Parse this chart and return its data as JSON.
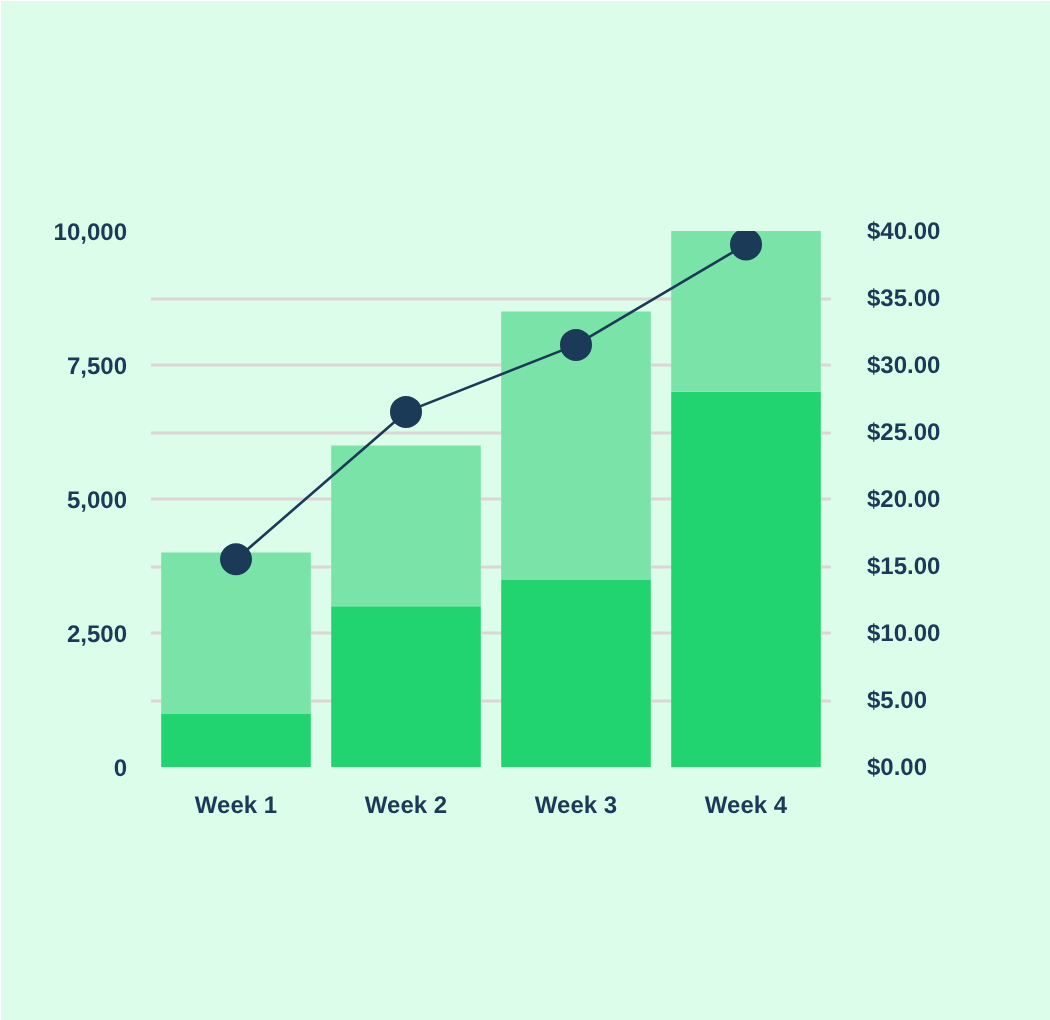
{
  "chart_data": {
    "type": "bar",
    "categories": [
      "Week 1",
      "Week 2",
      "Week 3",
      "Week 4"
    ],
    "stacked": true,
    "series": [
      {
        "color": "#22d46f",
        "values": [
          1000,
          3000,
          3500,
          7000
        ]
      },
      {
        "color": "#7ae3a8",
        "values": [
          3000,
          3000,
          5000,
          3000
        ]
      },
      {
        "type": "line",
        "axis": "y2",
        "color": "#1b3a57",
        "values": [
          15.5,
          26.5,
          31.5,
          39
        ]
      }
    ],
    "ylim": [
      0,
      10000
    ],
    "yticks": [
      0,
      {
        "value": 2500,
        "label": "2,500"
      },
      {
        "value": 5000,
        "label": "5,000"
      },
      {
        "value": 7500,
        "label": "7,500"
      },
      {
        "value": 10000,
        "label": "10,000"
      }
    ],
    "y2lim": [
      0,
      40
    ],
    "y2ticks": [
      {
        "value": 0,
        "label": "$0.00"
      },
      {
        "value": 5,
        "label": "$5.00"
      },
      {
        "value": 10,
        "label": "$10.00"
      },
      {
        "value": 15,
        "label": "$15.00"
      },
      {
        "value": 20,
        "label": "$20.00"
      },
      {
        "value": 25,
        "label": "$25.00"
      },
      {
        "value": 30,
        "label": "$30.00"
      },
      {
        "value": 35,
        "label": "$35.00"
      },
      {
        "value": 40,
        "label": "$40.00"
      }
    ],
    "grid": "y",
    "marker": "circle"
  }
}
